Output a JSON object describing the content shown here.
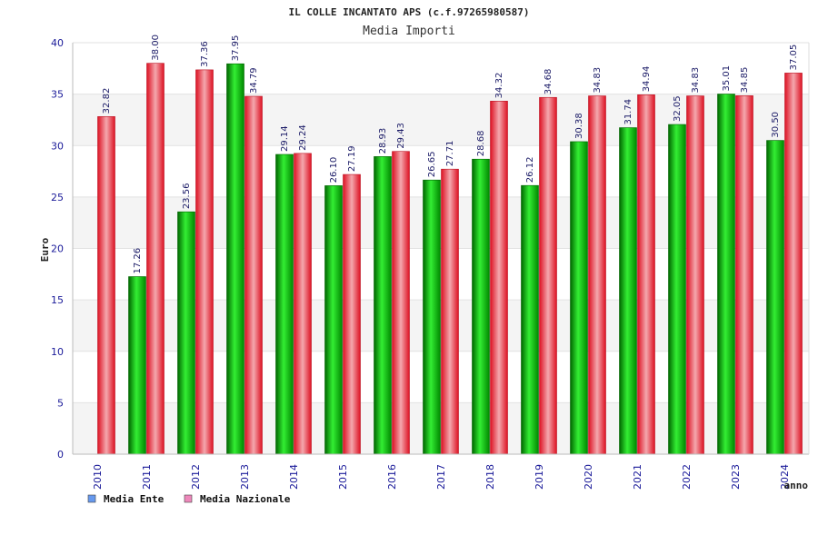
{
  "chart_data": {
    "type": "bar",
    "title": "IL COLLE INCANTATO APS (c.f.97265980587)",
    "subtitle": "Media Importi",
    "ylabel": "Euro",
    "xlabel": "anno",
    "ylim": [
      0,
      40
    ],
    "yticks": [
      0,
      5,
      10,
      15,
      20,
      25,
      30,
      35,
      40
    ],
    "categories": [
      "2010",
      "2011",
      "2012",
      "2013",
      "2014",
      "2015",
      "2016",
      "2017",
      "2018",
      "2019",
      "2020",
      "2021",
      "2022",
      "2023",
      "2024"
    ],
    "series": [
      {
        "name": "Media Ente",
        "color": "#00aa00",
        "legend_color": "#6699ee",
        "values": [
          null,
          17.26,
          23.56,
          37.95,
          29.14,
          26.1,
          28.93,
          26.65,
          28.68,
          26.12,
          30.38,
          31.74,
          32.05,
          35.01,
          30.5
        ],
        "labels": [
          "",
          "17.26",
          "23.56",
          "37.95",
          "29.14",
          "26.10",
          "28.93",
          "26.65",
          "28.68",
          "26.12",
          "30.38",
          "31.74",
          "32.05",
          "35.01",
          "30.50"
        ]
      },
      {
        "name": "Media Nazionale",
        "color": "#ee2233",
        "legend_color": "#ee88bb",
        "values": [
          32.82,
          38.0,
          37.36,
          34.79,
          29.24,
          27.19,
          29.43,
          27.71,
          34.32,
          34.68,
          34.83,
          34.94,
          34.83,
          34.85,
          37.05
        ],
        "labels": [
          "32.82",
          "38.00",
          "37.36",
          "34.79",
          "29.24",
          "27.19",
          "29.43",
          "27.71",
          "34.32",
          "34.68",
          "34.83",
          "34.94",
          "34.83",
          "34.85",
          "37.05"
        ]
      }
    ],
    "grid": true,
    "legend_position": "bottom-left"
  }
}
